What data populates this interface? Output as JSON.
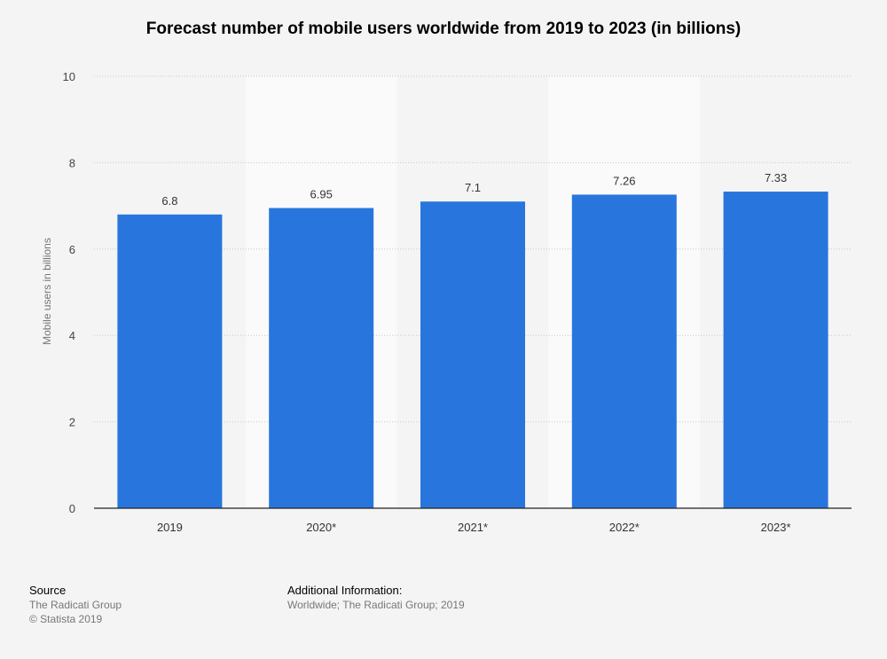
{
  "chart_data": {
    "type": "bar",
    "title": "Forecast number of mobile users worldwide from 2019 to 2023 (in billions)",
    "xlabel": "",
    "ylabel": "Mobile users in billions",
    "categories": [
      "2019",
      "2020*",
      "2021*",
      "2022*",
      "2023*"
    ],
    "values": [
      6.8,
      6.95,
      7.1,
      7.26,
      7.33
    ],
    "value_labels": [
      "6.8",
      "6.95",
      "7.1",
      "7.26",
      "7.33"
    ],
    "ylim": [
      0,
      10
    ],
    "yticks": [
      0,
      2,
      4,
      6,
      8,
      10
    ],
    "grid": true,
    "legend": "none",
    "bar_color": "#2876dd"
  },
  "footer": {
    "source_heading": "Source",
    "source_text": "The Radicati Group",
    "copyright": "© Statista 2019",
    "info_heading": "Additional Information:",
    "info_text": "Worldwide; The Radicati Group; 2019"
  }
}
